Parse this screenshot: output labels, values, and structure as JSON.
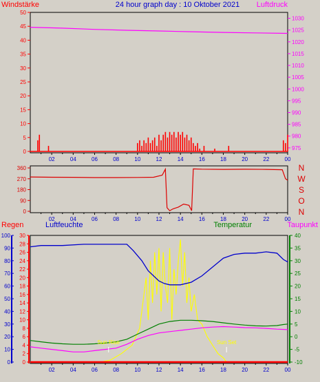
{
  "header": {
    "title": "24 hour graph day : 10 Oktober 2021",
    "left_label": "Windstärke",
    "right_label": "Luftdruck"
  },
  "colors": {
    "background": "#d4d0c8",
    "wind": "#ff0000",
    "pressure": "#ff00ff",
    "title": "#0000cc",
    "direction": "#dd0000",
    "rain": "#ff0000",
    "humidity": "#0000cc",
    "temperature": "#008000",
    "dewpoint": "#ff00ff",
    "solar": "#ffff00",
    "sun_labels": "#ffff00"
  },
  "chart_data": [
    {
      "id": "wind_pressure",
      "type": "bar",
      "left_axis": {
        "label": "Windstärke",
        "ticks": [
          0,
          5,
          10,
          15,
          20,
          25,
          30,
          35,
          40,
          45,
          50
        ],
        "range": [
          0,
          50
        ]
      },
      "right_axis": {
        "label": "Luftdruck",
        "ticks": [
          975,
          980,
          985,
          990,
          995,
          1000,
          1005,
          1010,
          1015,
          1020,
          1025,
          1030
        ],
        "range": [
          973.5,
          1032.5
        ]
      },
      "x_ticks": [
        "02",
        "04",
        "06",
        "08",
        "10",
        "12",
        "14",
        "16",
        "18",
        "20",
        "22",
        "00"
      ],
      "x_range_hours": [
        0,
        24
      ],
      "wind_bars": [
        [
          0.7,
          4
        ],
        [
          0.85,
          6
        ],
        [
          1.7,
          2
        ],
        [
          10.0,
          3
        ],
        [
          10.2,
          4
        ],
        [
          10.4,
          2
        ],
        [
          10.6,
          4
        ],
        [
          10.8,
          3
        ],
        [
          11.0,
          5
        ],
        [
          11.2,
          3
        ],
        [
          11.4,
          4
        ],
        [
          11.6,
          5
        ],
        [
          11.8,
          2
        ],
        [
          12.0,
          6
        ],
        [
          12.2,
          4
        ],
        [
          12.4,
          6
        ],
        [
          12.6,
          7
        ],
        [
          12.8,
          5
        ],
        [
          13.0,
          7
        ],
        [
          13.2,
          6
        ],
        [
          13.4,
          7
        ],
        [
          13.6,
          5
        ],
        [
          13.8,
          7
        ],
        [
          14.0,
          6
        ],
        [
          14.2,
          7
        ],
        [
          14.4,
          5
        ],
        [
          14.6,
          6
        ],
        [
          14.8,
          4
        ],
        [
          15.0,
          5
        ],
        [
          15.2,
          3
        ],
        [
          15.4,
          2
        ],
        [
          15.6,
          3
        ],
        [
          15.8,
          1
        ],
        [
          16.2,
          2
        ],
        [
          17.2,
          1
        ],
        [
          18.5,
          2
        ],
        [
          23.6,
          4
        ],
        [
          23.8,
          3
        ],
        [
          24.0,
          6
        ]
      ],
      "pressure": {
        "x": [
          0,
          3,
          6,
          9,
          12,
          15,
          18,
          21,
          24
        ],
        "y": [
          1026.2,
          1025.8,
          1025.3,
          1024.9,
          1024.6,
          1024.3,
          1024.0,
          1023.8,
          1023.6
        ]
      }
    },
    {
      "id": "wind_direction",
      "type": "line",
      "left_axis": {
        "ticks": [
          0,
          90,
          180,
          270,
          360
        ],
        "range": [
          0,
          360
        ]
      },
      "right_labels": [
        "N",
        "W",
        "S",
        "O",
        "N"
      ],
      "x_ticks": [
        "02",
        "04",
        "06",
        "08",
        "10",
        "12",
        "14",
        "16",
        "18",
        "20",
        "22",
        "00"
      ],
      "direction": {
        "x": [
          0,
          2,
          4,
          6,
          8,
          10,
          11.5,
          12.3,
          12.6,
          12.75,
          13.0,
          13.3,
          13.8,
          14.3,
          14.8,
          15.05,
          15.2,
          16,
          18,
          20,
          22,
          23.5,
          23.8,
          24
        ],
        "y": [
          285,
          283,
          282,
          280,
          280,
          281,
          283,
          300,
          350,
          30,
          5,
          20,
          35,
          60,
          50,
          5,
          352,
          350,
          348,
          349,
          348,
          345,
          270,
          258
        ]
      }
    },
    {
      "id": "climate",
      "type": "line",
      "labels": {
        "rain": "Regen",
        "humidity": "Luftfeuchte",
        "temperature": "Temperatur",
        "dewpoint": "Taupunkt"
      },
      "humidity_axis": {
        "ticks": [
          0,
          10,
          20,
          30,
          40,
          50,
          60,
          70,
          80,
          90,
          100
        ],
        "range": [
          0,
          100
        ]
      },
      "rain_axis": {
        "ticks": [
          0,
          2,
          4,
          6,
          8,
          10,
          12,
          14,
          16,
          18,
          20,
          22,
          24,
          26,
          28,
          30
        ],
        "range": [
          0,
          30
        ]
      },
      "temperature_axis": {
        "ticks": [
          -10,
          -5,
          0,
          5,
          10,
          15,
          20,
          25,
          30,
          35,
          40
        ],
        "range": [
          -10,
          40
        ]
      },
      "x_ticks": [
        "02",
        "04",
        "06",
        "08",
        "10",
        "12",
        "14",
        "16",
        "18",
        "20",
        "22",
        "00"
      ],
      "humidity": {
        "x": [
          0,
          1,
          3,
          5,
          7,
          9,
          9.6,
          10.4,
          11,
          11.5,
          12,
          12.5,
          13,
          14,
          15,
          16,
          17,
          18,
          19,
          20,
          21,
          22,
          23,
          23.6,
          24
        ],
        "y": [
          91,
          92,
          92,
          93,
          93,
          93,
          88,
          80,
          72,
          68,
          64,
          62,
          61,
          61,
          63,
          68,
          75,
          82,
          85,
          86,
          86,
          87,
          86,
          81,
          79
        ]
      },
      "temperature": {
        "x": [
          0,
          1,
          2,
          3,
          4,
          5,
          6,
          7,
          8,
          9,
          10,
          11,
          12,
          13,
          14,
          15,
          16,
          17,
          18,
          19,
          20,
          21,
          22,
          23,
          23.6,
          24
        ],
        "y": [
          -1.5,
          -2,
          -2.5,
          -2.8,
          -3,
          -3,
          -2.8,
          -2.5,
          -2,
          -1,
          1,
          3,
          5,
          6,
          6.5,
          6.5,
          6.3,
          6,
          5.5,
          5,
          4.6,
          4.3,
          4.2,
          4.4,
          4.8,
          5
        ]
      },
      "dewpoint": {
        "x": [
          0,
          1,
          2,
          3,
          4,
          5,
          6,
          7,
          8,
          9,
          10,
          11,
          12,
          13,
          14,
          15,
          16,
          17,
          18,
          19,
          20,
          21,
          22,
          23,
          24
        ],
        "y": [
          -4,
          -4.5,
          -5,
          -5.5,
          -6,
          -6,
          -5.5,
          -5,
          -4.5,
          -3,
          -1,
          0.5,
          1.5,
          2,
          2.5,
          3,
          3.5,
          3.8,
          4,
          3.8,
          3.6,
          3.5,
          3.3,
          3,
          2.8
        ]
      },
      "rain": {
        "x": [
          0,
          24
        ],
        "y": [
          0,
          0
        ]
      },
      "solar": {
        "x": [
          6.6,
          7.5,
          8.5,
          9.5,
          10.2,
          10.5,
          10.8,
          11.0,
          11.2,
          11.4,
          11.6,
          11.8,
          12.0,
          12.2,
          12.4,
          12.6,
          12.8,
          13.0,
          13.2,
          13.4,
          13.6,
          13.8,
          14.0,
          14.2,
          14.4,
          14.6,
          14.8,
          15.0,
          15.3,
          15.6,
          16.0,
          16.5,
          17.0,
          17.5,
          18.0,
          18.3
        ],
        "y": [
          0,
          0.5,
          2,
          4,
          8,
          14,
          20,
          10,
          24,
          14,
          26,
          16,
          27,
          12,
          26,
          18,
          14,
          27,
          10,
          22,
          16,
          24,
          29,
          18,
          26,
          14,
          20,
          12,
          16,
          10,
          9,
          6,
          4,
          2,
          1,
          0
        ]
      },
      "annotations": [
        {
          "text": "Sun Rise",
          "hour": 7.3
        },
        {
          "text": "Sun Set",
          "hour": 18.3
        }
      ]
    }
  ]
}
